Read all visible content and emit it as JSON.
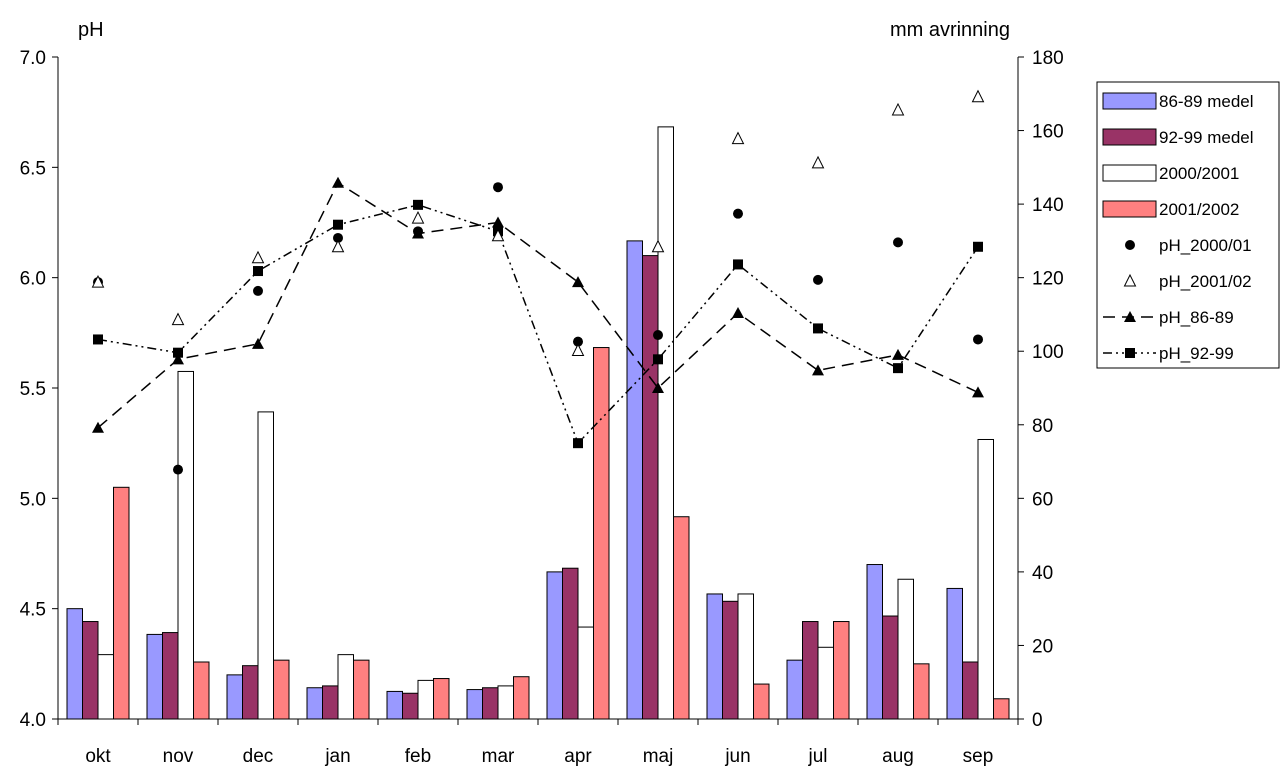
{
  "chart_data": {
    "type": "bar",
    "title": "",
    "categories": [
      "okt",
      "nov",
      "dec",
      "jan",
      "feb",
      "mar",
      "apr",
      "maj",
      "jun",
      "jul",
      "aug",
      "sep"
    ],
    "y_left": {
      "label": "pH",
      "min": 4.0,
      "max": 7.0,
      "ticks": [
        "4.0",
        "4.5",
        "5.0",
        "5.5",
        "6.0",
        "6.5",
        "7.0"
      ]
    },
    "y_right": {
      "label": "mm avrinning",
      "min": 0,
      "max": 180,
      "ticks": [
        "0",
        "20",
        "40",
        "60",
        "80",
        "100",
        "120",
        "140",
        "160",
        "180"
      ]
    },
    "grid": false,
    "legend_position": "right",
    "bar_series": [
      {
        "name": "86-89 medel",
        "color": "#9999ff",
        "axis": "right",
        "values": [
          30,
          23,
          12,
          8.5,
          7.5,
          8,
          40,
          130,
          34,
          16,
          42,
          35.5
        ]
      },
      {
        "name": "92-99 medel",
        "color": "#993366",
        "axis": "right",
        "values": [
          26.5,
          23.5,
          14.5,
          9,
          7,
          8.5,
          41,
          126,
          32,
          26.5,
          28,
          15.5
        ]
      },
      {
        "name": "2000/2001",
        "color": "#ffffff",
        "axis": "right",
        "values": [
          17.5,
          94.5,
          83.5,
          17.5,
          10.5,
          9,
          25,
          161,
          34,
          19.5,
          38,
          76
        ]
      },
      {
        "name": "2001/2002",
        "color": "#ff8080",
        "axis": "right",
        "values": [
          63,
          15.5,
          16,
          16,
          11,
          11.5,
          101,
          55,
          9.5,
          26.5,
          15,
          5.5
        ]
      }
    ],
    "point_series": [
      {
        "name": "pH_2000/01",
        "marker": "circle",
        "axis": "left",
        "values": [
          5.98,
          5.13,
          5.94,
          6.18,
          6.21,
          6.41,
          5.71,
          5.74,
          6.29,
          5.99,
          6.16,
          5.72
        ]
      },
      {
        "name": "pH_2001/02",
        "marker": "triangle-open",
        "axis": "left",
        "values": [
          5.98,
          5.81,
          6.09,
          6.14,
          6.27,
          6.19,
          5.67,
          6.14,
          6.63,
          6.52,
          6.76,
          6.82
        ]
      }
    ],
    "line_series": [
      {
        "name": "pH_86-89",
        "marker": "triangle-filled",
        "dash": "long",
        "axis": "left",
        "values": [
          5.32,
          5.63,
          5.7,
          6.43,
          6.2,
          6.25,
          5.98,
          5.5,
          5.84,
          5.58,
          5.65,
          5.48
        ]
      },
      {
        "name": "pH_92-99",
        "marker": "square-filled",
        "dash": "dash-dot-dot",
        "axis": "left",
        "values": [
          5.72,
          5.66,
          6.03,
          6.24,
          6.33,
          6.21,
          5.25,
          5.63,
          6.06,
          5.77,
          5.59,
          6.14
        ]
      }
    ]
  }
}
